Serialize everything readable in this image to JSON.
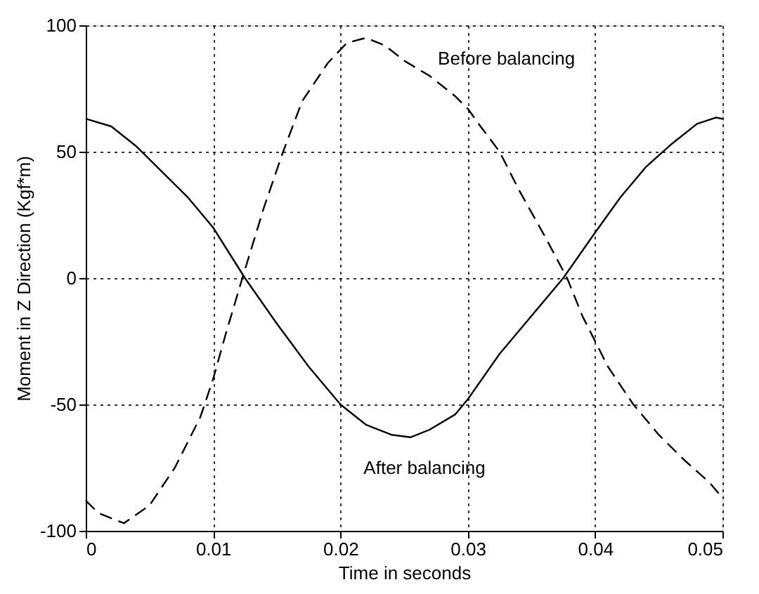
{
  "chart_data": {
    "type": "line",
    "xlabel": "Time in seconds",
    "ylabel": "Moment  in  Z  Direction (Kgf*m)",
    "xlim": [
      0,
      0.05
    ],
    "xticks": [
      0,
      0.01,
      0.02,
      0.03,
      0.04,
      0.05
    ],
    "line_style": "solid",
    "ylim": [
      -100,
      100
    ],
    "yticks": [
      -100,
      -50,
      0,
      50,
      100
    ],
    "grid": true,
    "series": [
      {
        "name": "Before balancing",
        "color": "#000000",
        "line_style": "dashed",
        "x": [
          0,
          0.001,
          0.003,
          0.005,
          0.007,
          0.009,
          0.01,
          0.011,
          0.0123,
          0.014,
          0.0155,
          0.017,
          0.019,
          0.0205,
          0.022,
          0.0235,
          0.025,
          0.027,
          0.029,
          0.03,
          0.031,
          0.0325,
          0.034,
          0.036,
          0.0378,
          0.039,
          0.041,
          0.043,
          0.045,
          0.047,
          0.049,
          0.05
        ],
        "values": [
          -88,
          -93,
          -97,
          -90,
          -75,
          -55,
          -40,
          -22,
          0,
          28,
          50,
          70,
          85,
          93,
          95,
          92,
          86,
          80,
          72,
          67,
          60,
          50,
          35,
          17,
          0,
          -15,
          -35,
          -50,
          -62,
          -72,
          -81,
          -87
        ]
      },
      {
        "name": "After balancing",
        "color": "#000000",
        "x": [
          0,
          0.002,
          0.004,
          0.006,
          0.008,
          0.01,
          0.0125,
          0.015,
          0.0175,
          0.02,
          0.022,
          0.024,
          0.0255,
          0.027,
          0.029,
          0.03,
          0.0325,
          0.035,
          0.0375,
          0.04,
          0.042,
          0.044,
          0.046,
          0.048,
          0.0495,
          0.05
        ],
        "values": [
          63,
          60,
          52,
          42,
          32,
          20,
          0,
          -18,
          -35,
          -50,
          -58,
          -62,
          -63,
          -60,
          -54,
          -48,
          -30,
          -15,
          0,
          18,
          32,
          44,
          53,
          61,
          63.5,
          63
        ]
      }
    ]
  }
}
